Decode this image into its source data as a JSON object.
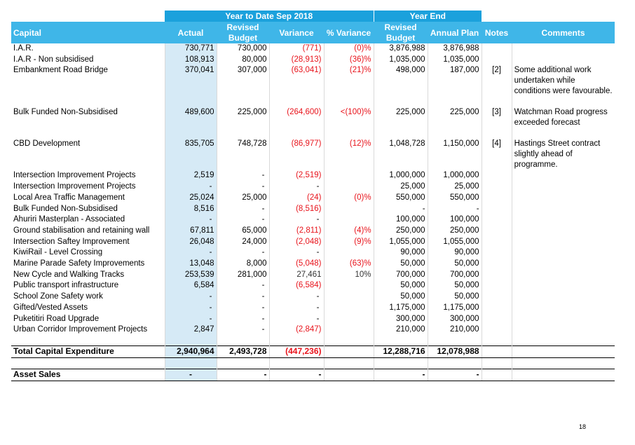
{
  "header": {
    "group_ytd": "Year to Date Sep 2018",
    "group_ye": "Year End",
    "col_capital": "Capital",
    "col_actual": "Actual",
    "col_revised_budget": "Revised Budget",
    "col_variance": "Variance",
    "col_pct_variance": "% Variance",
    "col_ye_revised_budget": "Revised Budget",
    "col_annual_plan": "Annual Plan",
    "col_notes": "Notes",
    "col_comments": "Comments"
  },
  "rows": [
    {
      "label": "I.A.R.",
      "actual": "730,771",
      "budget": "730,000",
      "variance": "(771)",
      "pct": "(0)%",
      "ye_budget": "3,876,988",
      "annual_plan": "3,876,988",
      "note": "",
      "comment": ""
    },
    {
      "label": "I.A.R - Non subsidised",
      "actual": "108,913",
      "budget": "80,000",
      "variance": "(28,913)",
      "pct": "(36)%",
      "ye_budget": "1,035,000",
      "annual_plan": "1,035,000",
      "note": "",
      "comment": ""
    },
    {
      "label": "Embankment Road Bridge",
      "actual": "370,041",
      "budget": "307,000",
      "variance": "(63,041)",
      "pct": "(21)%",
      "ye_budget": "498,000",
      "annual_plan": "187,000",
      "note": "[2]",
      "comment": "Some additional work undertaken while conditions were favourable."
    },
    {
      "label": "Bulk Funded Non-Subsidised",
      "actual": "489,600",
      "budget": "225,000",
      "variance": "(264,600)",
      "pct": "<(100)%",
      "ye_budget": "225,000",
      "annual_plan": "225,000",
      "note": "[3]",
      "comment": "Watchman Road progress exceeded forecast"
    },
    {
      "label": "CBD Development",
      "actual": "835,705",
      "budget": "748,728",
      "variance": "(86,977)",
      "pct": "(12)%",
      "ye_budget": "1,048,728",
      "annual_plan": "1,150,000",
      "note": "[4]",
      "comment": "Hastings Street contract slightly ahead of programme."
    },
    {
      "label": "Intersection Improvement Projects",
      "actual": "2,519",
      "budget": "-",
      "variance": "(2,519)",
      "pct": "",
      "ye_budget": "1,000,000",
      "annual_plan": "1,000,000",
      "note": "",
      "comment": ""
    },
    {
      "label": "Intersection Improvement Projects",
      "actual": "-",
      "budget": "-",
      "variance": "-",
      "pct": "",
      "ye_budget": "25,000",
      "annual_plan": "25,000",
      "note": "",
      "comment": ""
    },
    {
      "label": "Local Area Traffic Management",
      "actual": "25,024",
      "budget": "25,000",
      "variance": "(24)",
      "pct": "(0)%",
      "ye_budget": "550,000",
      "annual_plan": "550,000",
      "note": "",
      "comment": ""
    },
    {
      "label": "Bulk Funded Non-Subsidised",
      "actual": "8,516",
      "budget": "-",
      "variance": "(8,516)",
      "pct": "",
      "ye_budget": "-",
      "annual_plan": "-",
      "note": "",
      "comment": ""
    },
    {
      "label": "Ahuriri Masterplan - Associated",
      "actual": "-",
      "budget": "-",
      "variance": "-",
      "pct": "",
      "ye_budget": "100,000",
      "annual_plan": "100,000",
      "note": "",
      "comment": ""
    },
    {
      "label": "Ground stabilisation and retaining wall",
      "actual": "67,811",
      "budget": "65,000",
      "variance": "(2,811)",
      "pct": "(4)%",
      "ye_budget": "250,000",
      "annual_plan": "250,000",
      "note": "",
      "comment": ""
    },
    {
      "label": "Intersection Saftey Improvement",
      "actual": "26,048",
      "budget": "24,000",
      "variance": "(2,048)",
      "pct": "(9)%",
      "ye_budget": "1,055,000",
      "annual_plan": "1,055,000",
      "note": "",
      "comment": ""
    },
    {
      "label": "KiwiRail - Level Crossing",
      "actual": "-",
      "budget": "-",
      "variance": "-",
      "pct": "",
      "ye_budget": "90,000",
      "annual_plan": "90,000",
      "note": "",
      "comment": ""
    },
    {
      "label": "Marine Parade Safety Improvements",
      "actual": "13,048",
      "budget": "8,000",
      "variance": "(5,048)",
      "pct": "(63)%",
      "ye_budget": "50,000",
      "annual_plan": "50,000",
      "note": "",
      "comment": ""
    },
    {
      "label": "New Cycle and Walking Tracks",
      "actual": "253,539",
      "budget": "281,000",
      "variance": "27,461",
      "pct": "10%",
      "ye_budget": "700,000",
      "annual_plan": "700,000",
      "note": "",
      "comment": ""
    },
    {
      "label": "Public transport infrastructure",
      "actual": "6,584",
      "budget": "-",
      "variance": "(6,584)",
      "pct": "",
      "ye_budget": "50,000",
      "annual_plan": "50,000",
      "note": "",
      "comment": ""
    },
    {
      "label": "School Zone Safety work",
      "actual": "-",
      "budget": "-",
      "variance": "-",
      "pct": "",
      "ye_budget": "50,000",
      "annual_plan": "50,000",
      "note": "",
      "comment": ""
    },
    {
      "label": "Gifted/Vested Assets",
      "actual": "-",
      "budget": "-",
      "variance": "-",
      "pct": "",
      "ye_budget": "1,175,000",
      "annual_plan": "1,175,000",
      "note": "",
      "comment": ""
    },
    {
      "label": "Puketitiri Road Upgrade",
      "actual": "-",
      "budget": "-",
      "variance": "-",
      "pct": "",
      "ye_budget": "300,000",
      "annual_plan": "300,000",
      "note": "",
      "comment": ""
    },
    {
      "label": "Urban Corridor Improvement Projects",
      "actual": "2,847",
      "budget": "-",
      "variance": "(2,847)",
      "pct": "",
      "ye_budget": "210,000",
      "annual_plan": "210,000",
      "note": "",
      "comment": ""
    }
  ],
  "total": {
    "label": "Total Capital Expenditure",
    "actual": "2,940,964",
    "budget": "2,493,728",
    "variance": "(447,236)",
    "pct": "",
    "ye_budget": "12,288,716",
    "annual_plan": "12,078,988"
  },
  "asset_sales": {
    "label": "Asset Sales",
    "actual": "-",
    "budget": "-",
    "variance": "-",
    "ye_budget": "-",
    "annual_plan": "-"
  },
  "page_number": "18",
  "colors": {
    "header_dark": "#1ba1dc",
    "header_light": "#3fb6e8",
    "actual_shade": "#d6eaf6",
    "negative": "#e8131b"
  }
}
